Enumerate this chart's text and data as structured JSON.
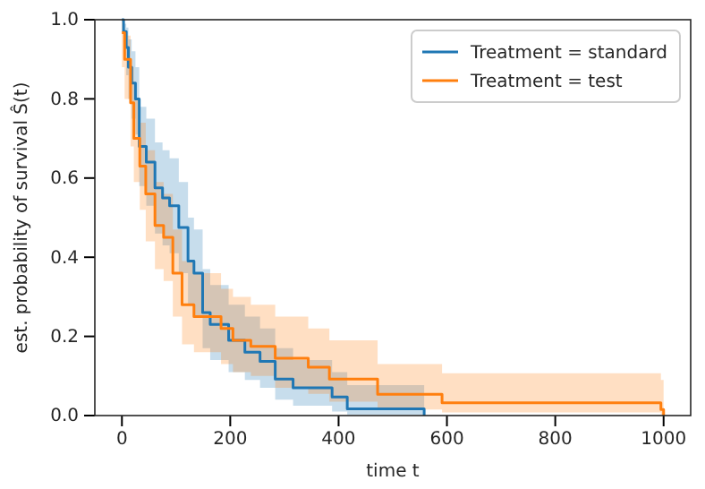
{
  "chart_data": {
    "type": "step",
    "xlabel": "time t",
    "ylabel": "est. probability of survival Ŝ(t)",
    "xlim": [
      -50,
      1050
    ],
    "ylim": [
      0,
      1
    ],
    "xticks": [
      0,
      200,
      400,
      600,
      800,
      1000
    ],
    "yticks": [
      {
        "value": 0,
        "label": "0.0"
      },
      {
        "value": 0.2,
        "label": "0.2"
      },
      {
        "value": 0.4,
        "label": "0.4"
      },
      {
        "value": 0.6,
        "label": "0.6"
      },
      {
        "value": 0.8,
        "label": "0.8"
      },
      {
        "value": 1,
        "label": "1.0"
      }
    ],
    "legend": "top right",
    "grid": false,
    "series": [
      {
        "name": "Treatment = standard",
        "color": "#1f77b4",
        "x": [
          0,
          3,
          8,
          12,
          18,
          25,
          32,
          45,
          61,
          75,
          88,
          105,
          122,
          133,
          149,
          163,
          197,
          227,
          255,
          283,
          316,
          388,
          416,
          558
        ],
        "values": [
          1.0,
          0.97,
          0.93,
          0.88,
          0.84,
          0.8,
          0.68,
          0.64,
          0.575,
          0.55,
          0.53,
          0.475,
          0.39,
          0.36,
          0.26,
          0.23,
          0.19,
          0.16,
          0.137,
          0.092,
          0.07,
          0.047,
          0.017,
          0
        ],
        "lower": [
          1.0,
          0.91,
          0.86,
          0.8,
          0.75,
          0.71,
          0.58,
          0.53,
          0.46,
          0.43,
          0.41,
          0.36,
          0.28,
          0.25,
          0.17,
          0.14,
          0.11,
          0.09,
          0.07,
          0.04,
          0.025,
          0.01,
          0.002,
          0
        ],
        "upper": [
          1.0,
          0.99,
          0.98,
          0.95,
          0.92,
          0.88,
          0.78,
          0.75,
          0.69,
          0.67,
          0.65,
          0.59,
          0.5,
          0.47,
          0.37,
          0.33,
          0.28,
          0.25,
          0.22,
          0.17,
          0.14,
          0.11,
          0.077,
          0
        ]
      },
      {
        "name": "Treatment = test",
        "color": "#ff7f0e",
        "x": [
          0,
          5,
          16,
          22,
          33,
          44,
          61,
          77,
          94,
          111,
          133,
          183,
          205,
          238,
          283,
          344,
          383,
          472,
          591,
          995,
          1000
        ],
        "values": [
          0.967,
          0.9,
          0.79,
          0.7,
          0.63,
          0.56,
          0.48,
          0.45,
          0.36,
          0.28,
          0.25,
          0.22,
          0.19,
          0.175,
          0.145,
          0.122,
          0.092,
          0.054,
          0.032,
          0.015,
          0
        ],
        "lower": [
          0.88,
          0.8,
          0.68,
          0.59,
          0.52,
          0.44,
          0.37,
          0.34,
          0.25,
          0.18,
          0.16,
          0.13,
          0.11,
          0.1,
          0.07,
          0.055,
          0.035,
          0.015,
          0.008,
          0.002,
          0
        ],
        "upper": [
          1.0,
          0.96,
          0.88,
          0.8,
          0.74,
          0.67,
          0.59,
          0.56,
          0.47,
          0.39,
          0.36,
          0.32,
          0.3,
          0.28,
          0.25,
          0.22,
          0.19,
          0.13,
          0.107,
          0.09,
          0
        ]
      }
    ]
  }
}
